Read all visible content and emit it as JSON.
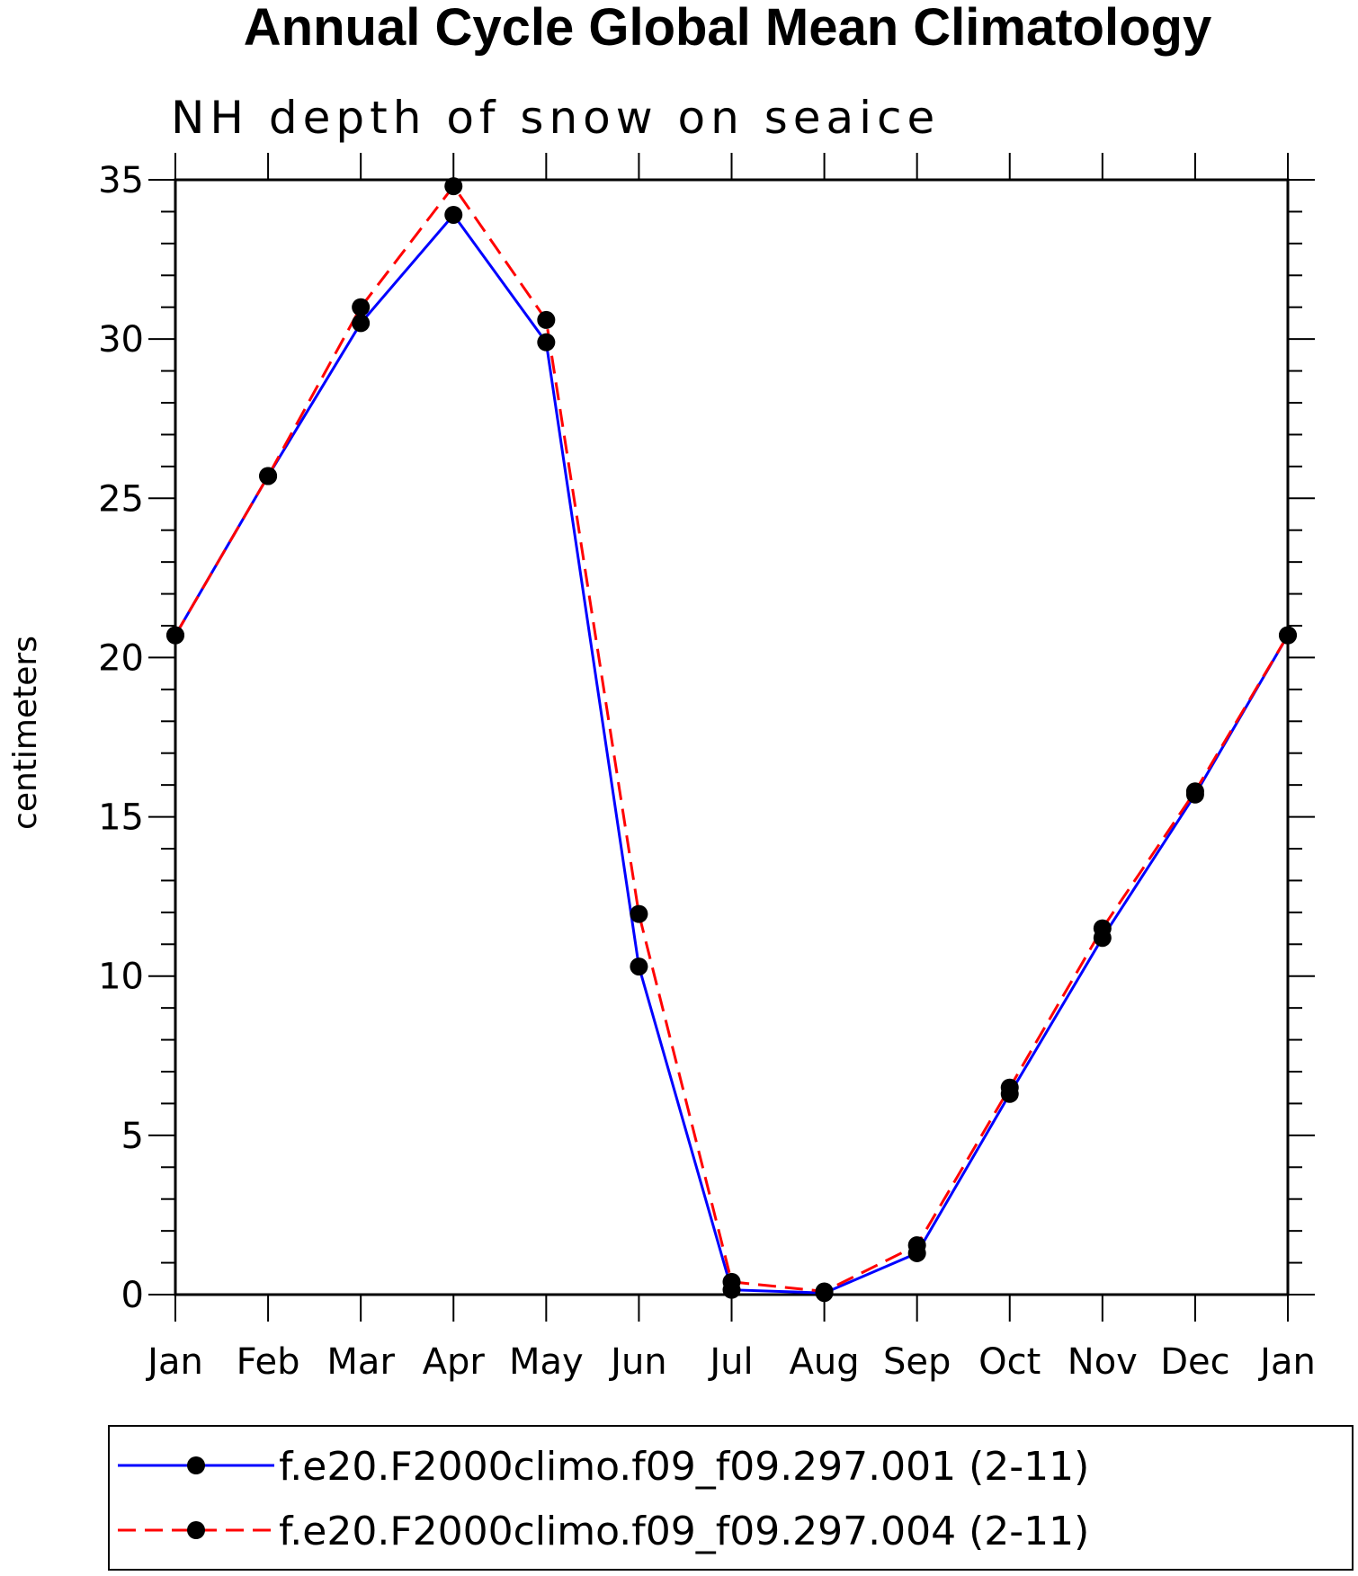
{
  "chart_data": {
    "type": "line",
    "title": "Annual Cycle Global Mean Climatology",
    "subtitle": "NH depth of snow on seaice",
    "xlabel": "",
    "ylabel": "centimeters",
    "categories": [
      "Jan",
      "Feb",
      "Mar",
      "Apr",
      "May",
      "Jun",
      "Jul",
      "Aug",
      "Sep",
      "Oct",
      "Nov",
      "Dec",
      "Jan"
    ],
    "ylim": [
      0,
      35
    ],
    "yticks": [
      0,
      5,
      10,
      15,
      20,
      25,
      30,
      35
    ],
    "grid": false,
    "legend_position": "bottom",
    "series": [
      {
        "name": "f.e20.F2000climo.f09_f09.297.001 (2-11)",
        "color": "#0000ff",
        "dash": "solid",
        "values": [
          20.7,
          25.7,
          30.5,
          33.9,
          29.9,
          10.3,
          0.15,
          0.05,
          1.3,
          6.3,
          11.2,
          15.7,
          20.7
        ]
      },
      {
        "name": "f.e20.F2000climo.f09_f09.297.004 (2-11)",
        "color": "#ff0000",
        "dash": "dashed",
        "values": [
          20.7,
          25.7,
          31.0,
          34.8,
          30.6,
          11.95,
          0.4,
          0.1,
          1.55,
          6.5,
          11.5,
          15.8,
          20.7
        ]
      }
    ]
  }
}
